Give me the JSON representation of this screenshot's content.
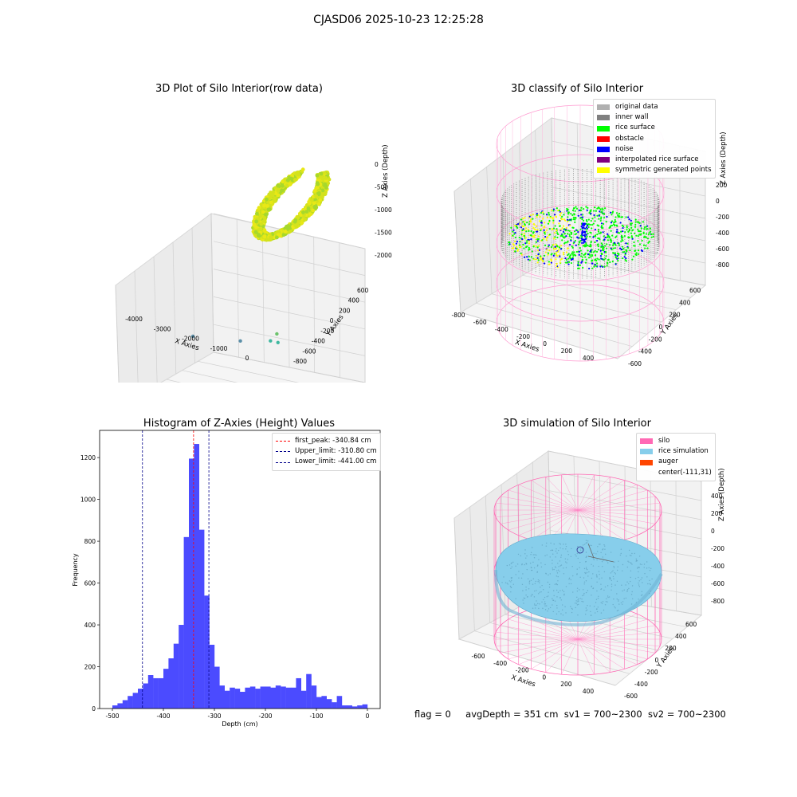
{
  "suptitle": "CJASD06 2025-10-23 12:25:28",
  "status": {
    "flag": "flag = 0",
    "avg_depth": "avgDepth = 351 cm",
    "sv1": "sv1 = 700~2300",
    "sv2": "sv2 = 700~2300"
  },
  "chart_data": [
    {
      "type": "scatter",
      "projection": "3d",
      "title": "3D Plot of Silo Interior(row data)",
      "xlabel": "X Axies",
      "ylabel": "Y Axies",
      "zlabel": "Z Axies (Depth)",
      "x_ticks": [
        "-4000",
        "-3000",
        "-2000",
        "-1000",
        "0"
      ],
      "y_ticks": [
        "-800",
        "-600",
        "-400",
        "-200",
        "0",
        "200",
        "400",
        "600"
      ],
      "z_ticks": [
        "0",
        "-500",
        "-1000",
        "-1500",
        "-2000"
      ],
      "points": [
        {
          "x": -4300,
          "y": -300,
          "z": -2150,
          "color": "#5a2a78"
        },
        {
          "x": -3700,
          "y": 100,
          "z": -1500,
          "color": "#5b8fa8"
        },
        {
          "x": -2500,
          "y": 200,
          "z": -1450,
          "color": "#5b8fa8"
        },
        {
          "x": -1800,
          "y": 300,
          "z": -1400,
          "color": "#3fb8a0"
        },
        {
          "x": -1500,
          "y": 250,
          "z": -1350,
          "color": "#3fb8a0"
        },
        {
          "x": -1700,
          "y": 350,
          "z": -1300,
          "color": "#6cc36c"
        }
      ],
      "cluster": {
        "desc_color": "#c8e01e",
        "note": "rice surface point cloud"
      }
    },
    {
      "type": "scatter",
      "projection": "3d",
      "title": "3D classify of Silo Interior",
      "xlabel": "X Axies",
      "ylabel": "Y Axies",
      "zlabel": "Z Axies (Depth)",
      "x_ticks": [
        "-800",
        "-600",
        "-400",
        "-200",
        "0",
        "200",
        "400"
      ],
      "y_ticks": [
        "-600",
        "-400",
        "-200",
        "0",
        "200",
        "400",
        "600"
      ],
      "z_ticks": [
        "200",
        "0",
        "-200",
        "-400",
        "-600",
        "-800"
      ],
      "legend": [
        {
          "label": "original data",
          "color": "#b0b0b0"
        },
        {
          "label": "inner wall",
          "color": "#808080"
        },
        {
          "label": "rice surface",
          "color": "#00ff00"
        },
        {
          "label": "obstacle",
          "color": "#ff0000"
        },
        {
          "label": "noise",
          "color": "#0000ff"
        },
        {
          "label": "interpolated rice surface",
          "color": "#800080"
        },
        {
          "label": "symmetric generated points",
          "color": "#ffff00"
        }
      ],
      "legend_position": "upper right"
    },
    {
      "type": "histogram",
      "title": "Histogram of Z-Axies (Height) Values",
      "xlabel": "Depth (cm)",
      "ylabel": "Frequency",
      "xlim": [
        -525,
        25
      ],
      "ylim": [
        0,
        1330
      ],
      "x_ticks": [
        -500,
        -400,
        -300,
        -200,
        -100,
        0
      ],
      "y_ticks": [
        0,
        200,
        400,
        600,
        800,
        1000,
        1200
      ],
      "bar_color": "#4b4bff",
      "bin_start": -500,
      "bin_width": 10,
      "values": [
        15,
        25,
        40,
        60,
        75,
        95,
        120,
        160,
        145,
        145,
        190,
        240,
        310,
        400,
        820,
        1195,
        1265,
        855,
        540,
        305,
        200,
        110,
        85,
        100,
        95,
        80,
        100,
        105,
        95,
        105,
        105,
        100,
        110,
        105,
        100,
        100,
        145,
        85,
        165,
        110,
        55,
        60,
        45,
        30,
        60,
        15,
        15,
        10,
        15,
        20
      ],
      "lines": [
        {
          "label": "first_peak: -340.84 cm",
          "x": -340.84,
          "color": "#ff0000"
        },
        {
          "label": "Upper_limit: -310.80 cm",
          "x": -310.8,
          "color": "#00008b"
        },
        {
          "label": "Lower_limit: -441.00 cm",
          "x": -441.0,
          "color": "#00008b"
        }
      ],
      "legend_position": "upper right"
    },
    {
      "type": "surface",
      "projection": "3d",
      "title": "3D simulation of Silo Interior",
      "xlabel": "X Axies",
      "ylabel": "Y Axies",
      "zlabel": "Z Axies (Depth)",
      "x_ticks": [
        "-600",
        "-400",
        "-200",
        "0",
        "200",
        "400"
      ],
      "y_ticks": [
        "-600",
        "-400",
        "-200",
        "0",
        "200",
        "400",
        "600"
      ],
      "z_ticks": [
        "400",
        "200",
        "0",
        "-200",
        "-400",
        "-600",
        "-800"
      ],
      "legend": [
        {
          "label": "silo",
          "color": "#ff69b4"
        },
        {
          "label": "rice simulation",
          "color": "#87ceeb"
        },
        {
          "label": "auger",
          "color": "#ff4500"
        },
        {
          "label": "center(-111,31)",
          "color": ""
        }
      ],
      "legend_position": "upper right"
    }
  ]
}
